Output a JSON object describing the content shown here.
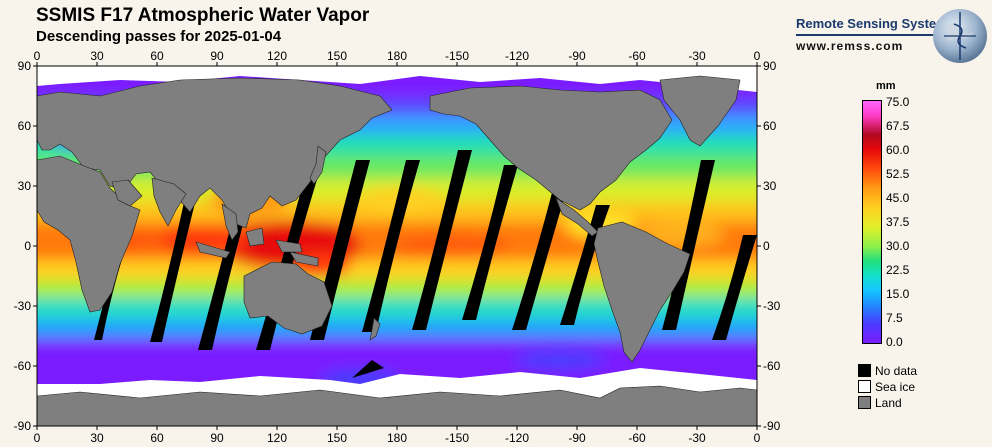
{
  "header": {
    "title": "SSMIS F17 Atmospheric Water Vapor",
    "subtitle": "Descending passes for 2025-01-04"
  },
  "brand": {
    "name": "Remote Sensing Systems",
    "url": "www.remss.com"
  },
  "map": {
    "lon_ticks": [
      "0",
      "30",
      "60",
      "90",
      "120",
      "150",
      "180",
      "-150",
      "-120",
      "-90",
      "-60",
      "-30",
      "0"
    ],
    "lat_ticks": [
      "90",
      "60",
      "30",
      "0",
      "-30",
      "-60",
      "-90"
    ]
  },
  "colorbar": {
    "unit": "mm",
    "labels": [
      "75.0",
      "67.5",
      "60.0",
      "52.5",
      "45.0",
      "37.5",
      "30.0",
      "22.5",
      "15.0",
      "7.5",
      "0.0"
    ]
  },
  "legend": [
    {
      "label": "No data",
      "color": "#000000"
    },
    {
      "label": "Sea ice",
      "color": "#ffffff"
    },
    {
      "label": "Land",
      "color": "#7f7f7f"
    }
  ],
  "colors": {
    "land": "#7f7f7f",
    "no_data": "#000000",
    "sea_ice": "#ffffff",
    "brand": "#1a3a6e"
  }
}
